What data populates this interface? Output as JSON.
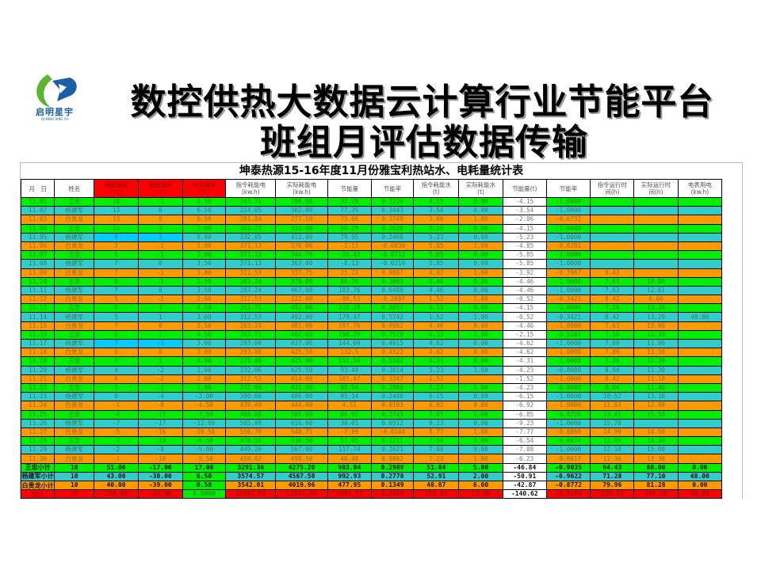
{
  "logo": {
    "name": "启明星宇",
    "subtitle": "QI MING XING YU"
  },
  "headline": {
    "line1": "数控供热大数据云计算行业节能平台",
    "line2": "班组月评估数据传输"
  },
  "sheet": {
    "title": "坤泰热源15-16年度11月份雅宝利热站水、电耗量统计表",
    "columns": [
      "月　日",
      "姓名",
      "最高温度\n(℃)",
      "最低温度\n(℃)",
      "平均温度\n(℃)",
      "指令耗能电\n(kw.h)",
      "实际耗能电\n(kw.h)",
      "节能量",
      "节能率",
      "指令耗能水\n(t)",
      "实际耗能水\n(t)",
      "节能量(t)",
      "节能率",
      "指令运行时\n间(h)",
      "实际运行时\n间(h)",
      "电表用电\n(kw.h)"
    ],
    "colors": {
      "王忠": "#00ee00",
      "杨建军": "#33cccc",
      "白贵龙": "#ff9900",
      "total": "#ff0000",
      "highlight": "#00ccff"
    },
    "rows": [
      [
        "11.01",
        "王忠",
        "10",
        "-1",
        "4.50",
        "263.71",
        "296.00",
        "32.29",
        "0.1224",
        "4.15",
        "0.00",
        "-4.15",
        "-1.0000",
        "",
        "",
        ""
      ],
      [
        "11.02",
        "杨建军",
        "13",
        "0",
        "6.50",
        "224.65",
        "302.00",
        "77.35",
        "0.3443",
        "3.54",
        "0.00",
        "-3.54",
        "-1.0000",
        "",
        "",
        ""
      ],
      [
        "11.03",
        "白贵龙",
        "13",
        "0",
        "6.50",
        "201.84",
        "277.50",
        "75.66",
        "0.3749",
        "3.06",
        "1.00",
        "-2.06",
        "-0.6732",
        "",
        "",
        ""
      ],
      [
        "11.04",
        "王忠",
        "11",
        "3",
        "7.00",
        "263.71",
        "333.00",
        "69.29",
        "0.2628",
        "4.15",
        "0.00",
        "-4.15",
        "-1.0000",
        "",
        "",
        ""
      ],
      [
        "11.05",
        "杨建军",
        "9",
        "1",
        "5.00",
        "332.05",
        "412.00",
        "79.95",
        "0.2408",
        "5.23",
        "0.00",
        "-5.23",
        "-1.0000",
        "",
        "",
        ""
      ],
      [
        "11.06",
        "白贵龙",
        "3",
        "-1",
        "1.00",
        "371.13",
        "370.00",
        "-1.13",
        "-0.0030",
        "5.85",
        "1.00",
        "-4.85",
        "-0.8291",
        "",
        "",
        ""
      ],
      [
        "11.07",
        "王忠",
        "5",
        "-1",
        "2.00",
        "371.13",
        "344.70",
        "-26.43",
        "-0.0712",
        "5.85",
        "0.00",
        "-5.85",
        "-1.0000",
        "",
        "",
        ""
      ],
      [
        "11.08",
        "杨建军",
        "7",
        "0",
        "3.50",
        "371.13",
        "363.00",
        "-8.13",
        "-0.0219",
        "5.85",
        "0.00",
        "-5.85",
        "-1.0000",
        "",
        "",
        ""
      ],
      [
        "11.09",
        "白贵龙",
        "7",
        "-1",
        "3.00",
        "312.53",
        "337.75",
        "25.22",
        "0.0807",
        "4.92",
        "1.00",
        "-3.92",
        "-0.7967",
        "8.42",
        "",
        ""
      ],
      [
        "11.10",
        "王忠",
        "8",
        "-1",
        "3.50",
        "283.24",
        "370.00",
        "86.76",
        "0.3063",
        "4.46",
        "0.00",
        "-4.46",
        "-1.0000",
        "7.63",
        "10.00",
        ""
      ],
      [
        "11.11",
        "杨建军",
        "7",
        "0",
        "3.50",
        "283.24",
        "467.00",
        "183.76",
        "0.6488",
        "4.46",
        "0.00",
        "-4.46",
        "-1.0000",
        "7.63",
        "12.61",
        ""
      ],
      [
        "11.12",
        "白贵龙",
        "5",
        "-1",
        "2.00",
        "312.53",
        "222.00",
        "-90.53",
        "-0.2897",
        "1.52",
        "1.00",
        "-0.52",
        "-0.3421",
        "8.42",
        "6.00",
        ""
      ],
      [
        "11.13",
        "王忠",
        "6",
        "3",
        "4.50",
        "263.71",
        "492.00",
        "228.29",
        "0.8657",
        "4.15",
        "0.00",
        "-4.15",
        "-1.0000",
        "7.10",
        "13.20",
        ""
      ],
      [
        "11.14",
        "杨建军",
        "5",
        "1",
        "3.00",
        "312.53",
        "492.00",
        "179.47",
        "0.5742",
        "1.52",
        "1.00",
        "-0.52",
        "-0.3421",
        "8.42",
        "13.29",
        "48.00"
      ],
      [
        "11.15",
        "白贵龙",
        "7",
        "0",
        "3.50",
        "283.24",
        "481.00",
        "197.76",
        "0.6982",
        "4.46",
        "0.00",
        "-4.46",
        "-1.0000",
        "7.63",
        "13.00",
        ""
      ],
      [
        "11.16",
        "王忠",
        "8",
        "1",
        "4.50",
        "263.71",
        "462.00",
        "198.29",
        "0.7519",
        "4.15",
        "2.00",
        "-2.15",
        "-0.5181",
        "7.10",
        "12.30",
        ""
      ],
      [
        "11.17",
        "杨建军",
        "7",
        "-1",
        "3.00",
        "293.00",
        "437.00",
        "144.00",
        "0.4915",
        "4.62",
        "0.00",
        "-4.62",
        "-1.0000",
        "7.89",
        "11.80",
        ""
      ],
      [
        "11.18",
        "白贵龙",
        "6",
        "0",
        "3.00",
        "293.00",
        "425.50",
        "132.5",
        "0.4522",
        "4.62",
        "0.00",
        "-4.62",
        "-1.0000",
        "7.89",
        "11.30",
        ""
      ],
      [
        "11.19",
        "王忠",
        "7",
        "1",
        "4.00",
        "273.46",
        "425.00",
        "151.54",
        "0.5542",
        "4.31",
        "0.00",
        "-4.31",
        "-1.0000",
        "7.36",
        "11.30",
        ""
      ],
      [
        "11.20",
        "杨建军",
        "4",
        "-2",
        "1.00",
        "332.06",
        "425.50",
        "93.44",
        "0.2814",
        "5.23",
        "1.00",
        "-4.23",
        "-0.8088",
        "8.94",
        "11.30",
        ""
      ],
      [
        "11.21",
        "白贵龙",
        "6",
        "-2",
        "2.00",
        "312.53",
        "414.00",
        "101.47",
        "0.3247",
        "1.52",
        "",
        "-1.52",
        "-1.0000",
        "8.42",
        "11.18",
        ""
      ],
      [
        "11.22",
        "王忠",
        "3",
        "-1",
        "1.00",
        "332.06",
        "431.00",
        "98.94",
        "0.2980",
        "5.23",
        "1.00",
        "-4.23",
        "-0.8088",
        "8.94",
        "11.40",
        ""
      ],
      [
        "11.23",
        "杨建军",
        "0",
        "-4",
        "-2.00",
        "390.66",
        "486.00",
        "95.34",
        "0.2440",
        "6.15",
        "0.00",
        "-6.15",
        "-1.0000",
        "10.52",
        "13.10",
        ""
      ],
      [
        "11.24",
        "白贵龙",
        "-1",
        "-8",
        "-4.50",
        "439.49",
        "444.00",
        "4.51",
        "0.0103",
        "6.92",
        "0.00",
        "-6.92",
        "-1.0000",
        "11.83",
        "12.00",
        ""
      ],
      [
        "11.25",
        "王忠",
        "-4",
        "-11",
        "-7.50",
        "498.08",
        "585.00",
        "86.92",
        "0.1745",
        "7.85",
        "1.00",
        "-6.85",
        "-0.8726",
        "13.41",
        "15.50",
        ""
      ],
      [
        "11.26",
        "杨建军",
        "-7",
        "-17",
        "-12.00",
        "585.99",
        "616.00",
        "30.01",
        "0.0512",
        "9.23",
        "0.00",
        "-9.23",
        "-1.0000",
        "15.78",
        "",
        ""
      ],
      [
        "11.27",
        "白贵龙",
        "-5",
        "-16",
        "-10.50",
        "556.70",
        "548.71",
        "-7.99",
        "-0.0144",
        "8.77",
        "1.00",
        "-7.77",
        "-0.8860",
        "14.99",
        "14.50",
        ""
      ],
      [
        "11.28",
        "王忠",
        "-3",
        "-10",
        "-6.50",
        "478.55",
        "536.50",
        "57.95",
        "0.1211",
        "7.54",
        "1.00",
        "-6.54",
        "-0.8674",
        "12.89",
        "14.30",
        ""
      ],
      [
        "11.29",
        "杨建军",
        "-2",
        "-8",
        "-5.00",
        "449.26",
        "567.00",
        "117.74",
        "0.2621",
        "7.08",
        "0.00",
        "-7.08",
        "-1.0000",
        "12.10",
        "15.00",
        ""
      ],
      [
        "11.30",
        "白贵龙",
        "-1",
        "-10",
        "-5.50",
        "459.02",
        "499.50",
        "40.48",
        "0.0882",
        "7.23",
        "1.00",
        "-6.23",
        "-0.8617",
        "12.36",
        "13.30",
        ""
      ]
    ],
    "summary": [
      [
        "王忠小计",
        "10",
        "51.00",
        "-17.00",
        "17.00",
        "3291.36",
        "4275.20",
        "983.84",
        "0.2989",
        "51.84",
        "5.00",
        "-46.84",
        "-0.9035",
        "64.43",
        "88.00",
        "0.00"
      ],
      [
        "杨建军小计",
        "10",
        "43.00",
        "-30.00",
        "6.50",
        "3574.57",
        "4567.50",
        "992.93",
        "0.2778",
        "52.91",
        "2.00",
        "-50.91",
        "-0.9622",
        "71.28",
        "77.10",
        "48.00"
      ],
      [
        "白贵龙小计",
        "10",
        "40.00",
        "-39.00",
        "0.50",
        "3542.01",
        "4019.96",
        "477.95",
        "0.1349",
        "48.87",
        "6.00",
        "-42.87",
        "-0.8772",
        "79.96",
        "81.28",
        "0.00"
      ],
      [
        "合计",
        "30",
        "134.00",
        "-86.00",
        "0.8000",
        "10407.94",
        "12862.66",
        "2454.72",
        "0.2369",
        "153.62",
        "13.00",
        "-140.62",
        "-0.9154",
        "215.67",
        "246.38",
        "48.00"
      ]
    ]
  }
}
